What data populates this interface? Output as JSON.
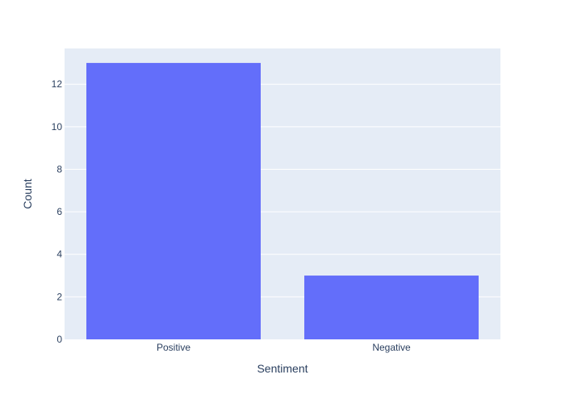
{
  "chart_data": {
    "type": "bar",
    "categories": [
      "Positive",
      "Negative"
    ],
    "values": [
      13,
      3
    ],
    "xlabel": "Sentiment",
    "ylabel": "Count",
    "ylim": [
      0,
      13.68
    ],
    "yticks": [
      0,
      2,
      4,
      6,
      8,
      10,
      12
    ],
    "grid": true,
    "colors": {
      "bar": "#636efa",
      "plot_background": "#e5ecf6",
      "gridline": "#ffffff",
      "text": "#2a3f5f"
    }
  }
}
